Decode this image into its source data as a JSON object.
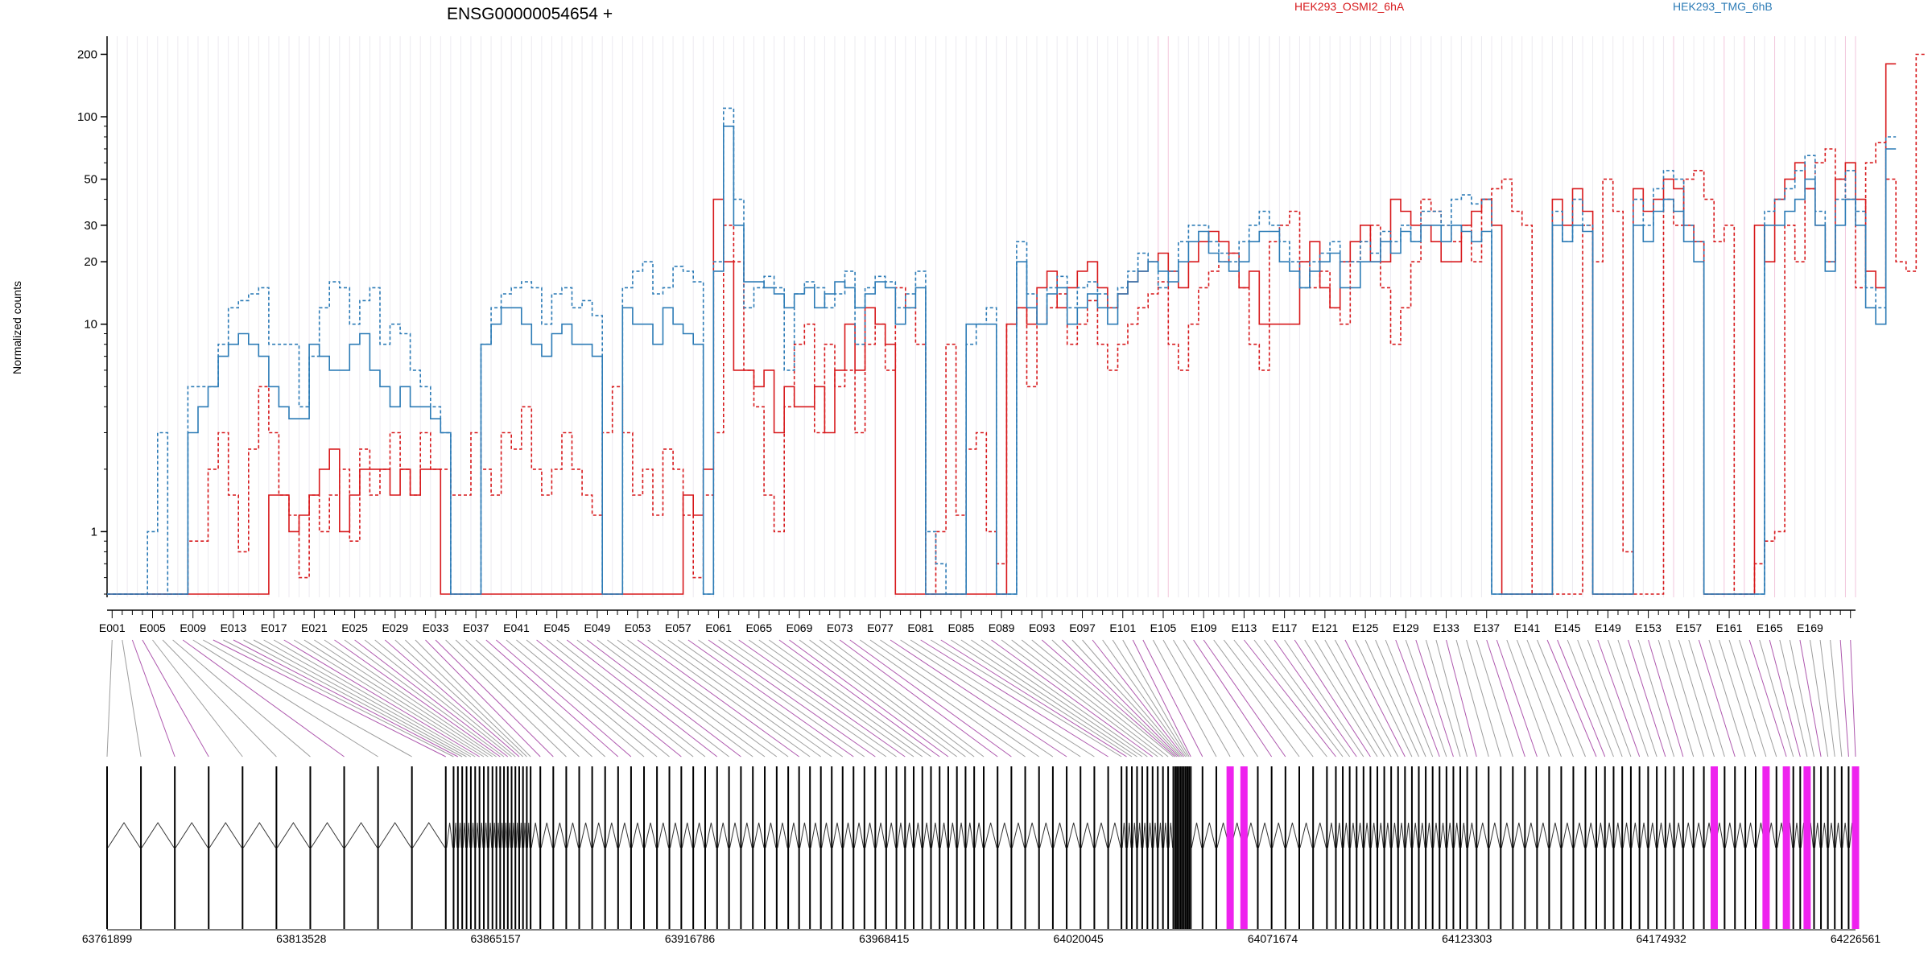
{
  "title": "ENSG00000054654 +",
  "legend": [
    {
      "name": "HEK293_OSMI2_6hA",
      "color": "#d7191c"
    },
    {
      "name": "HEK293_TMG_6hB",
      "color": "#2c7bb6"
    }
  ],
  "colors": {
    "osmi": "#d7191c",
    "tmg": "#2c7bb6",
    "exon_highlight": "#ee22ee",
    "connector_normal": "#8c8c8c",
    "connector_highlight": "#a03ca0"
  },
  "chart_data": {
    "type": "line",
    "title": "ENSG00000054654 +",
    "xlabel": "",
    "ylabel": "Normalized counts",
    "y_scale": "log",
    "ylim": [
      0.5,
      210
    ],
    "y_ticks": [
      1,
      10,
      20,
      30,
      50,
      100,
      200
    ],
    "y_tick_labels": [
      "1",
      "10",
      "20",
      "30",
      "50",
      "100",
      "200"
    ],
    "bins_count": 173,
    "bin_labels": [
      "E001",
      "E005",
      "E009",
      "E013",
      "E017",
      "E021",
      "E025",
      "E029",
      "E033",
      "E037",
      "E041",
      "E045",
      "E049",
      "E053",
      "E057",
      "E061",
      "E065",
      "E069",
      "E073",
      "E077",
      "E081",
      "E085",
      "E089",
      "E093",
      "E097",
      "E101",
      "E105",
      "E109",
      "E113",
      "E117",
      "E121",
      "E125",
      "E129",
      "E133",
      "E137",
      "E141",
      "E145",
      "E149",
      "E153",
      "E157",
      "E161",
      "E165",
      "E169"
    ],
    "genomic_range": [
      63761899,
      64226561
    ],
    "genomic_ticks": [
      "63761899",
      "63813528",
      "63865157",
      "63916786",
      "63968415",
      "64020045",
      "64071674",
      "64123303",
      "64174932",
      "64226561"
    ],
    "highlighted_exons": [
      104,
      105,
      155,
      160,
      162,
      165,
      172,
      173
    ],
    "series": [
      {
        "name": "HEK293_OSMI2_6hA",
        "style": "dashed",
        "values": [
          0.5,
          0.5,
          0.5,
          0.5,
          0.5,
          0.5,
          0.5,
          0.5,
          0.9,
          0.9,
          2,
          3,
          1.5,
          0.8,
          2.5,
          5,
          3,
          1.5,
          1.2,
          0.6,
          1.5,
          1,
          1.5,
          2,
          0.9,
          2.5,
          1.5,
          2,
          3,
          2,
          1.5,
          3,
          2,
          2,
          1.5,
          1.5,
          3,
          2,
          1.5,
          3,
          2.5,
          4,
          2,
          1.5,
          2,
          3,
          2,
          1.5,
          1.2,
          3,
          5,
          3,
          1.5,
          2,
          1.2,
          2.5,
          2,
          1.2,
          0.6,
          1.5,
          3,
          30,
          20,
          6,
          4,
          1.5,
          1,
          4,
          8,
          10,
          3,
          8,
          5,
          6,
          3,
          8,
          10,
          6,
          15,
          12,
          8,
          0.5,
          1,
          8,
          1.2,
          2.5,
          3,
          1,
          0.7,
          10,
          12,
          5,
          10,
          12,
          14,
          8,
          10,
          13,
          8,
          6,
          8,
          10,
          12,
          14,
          16,
          8,
          6,
          10,
          15,
          18,
          20,
          22,
          15,
          8,
          6,
          25,
          30,
          35,
          20,
          15,
          18,
          12,
          10,
          20,
          25,
          30,
          15,
          8,
          12,
          20,
          40,
          35,
          30,
          25,
          30,
          20,
          40,
          45,
          50,
          35,
          30,
          0.5,
          0.5,
          0.5,
          0.5,
          0.5,
          30,
          20,
          50,
          35,
          0.8,
          0.5,
          0.5,
          0.5,
          40,
          30,
          50,
          55,
          40,
          25,
          30,
          0.5,
          0.5,
          0.7,
          0.9,
          1,
          30,
          20,
          45,
          60,
          70,
          50,
          40,
          15,
          60,
          75,
          50,
          20,
          18,
          200
        ]
      },
      {
        "name": "HEK293_OSMI2_6hA",
        "style": "solid",
        "values": [
          0.5,
          0.5,
          0.5,
          0.5,
          0.5,
          0.5,
          0.5,
          0.5,
          0.5,
          0.5,
          0.5,
          0.5,
          0.5,
          0.5,
          0.5,
          0.5,
          1.5,
          1.5,
          1,
          1.2,
          1.5,
          2,
          2.5,
          1,
          1.5,
          2,
          2,
          2,
          1.5,
          2,
          1.5,
          2,
          2,
          0.5,
          0.5,
          0.5,
          0.5,
          0.5,
          0.5,
          0.5,
          0.5,
          0.5,
          0.5,
          0.5,
          0.5,
          0.5,
          0.5,
          0.5,
          0.5,
          0.5,
          0.5,
          0.5,
          0.5,
          0.5,
          0.5,
          0.5,
          0.5,
          1.5,
          1.2,
          2,
          40,
          20,
          6,
          6,
          5,
          6,
          3,
          5,
          4,
          4,
          5,
          3,
          6,
          10,
          6,
          12,
          10,
          8,
          0.5,
          0.5,
          0.5,
          0.5,
          0.5,
          0.5,
          0.5,
          0.5,
          0.5,
          0.5,
          0.5,
          10,
          12,
          10,
          15,
          18,
          12,
          15,
          18,
          20,
          15,
          12,
          14,
          16,
          18,
          20,
          22,
          18,
          15,
          20,
          25,
          28,
          25,
          22,
          15,
          18,
          10,
          10,
          10,
          10,
          20,
          25,
          15,
          12,
          20,
          25,
          30,
          20,
          20,
          40,
          35,
          30,
          30,
          25,
          20,
          20,
          30,
          35,
          40,
          30,
          0.5,
          0.5,
          0.5,
          0.5,
          0.5,
          40,
          30,
          45,
          35,
          0.5,
          0.5,
          0.5,
          0.5,
          45,
          35,
          40,
          50,
          45,
          30,
          25,
          0.5,
          0.5,
          0.5,
          0.5,
          0.5,
          30,
          20,
          40,
          50,
          60,
          45,
          30,
          20,
          50,
          60,
          40,
          18,
          15,
          180
        ]
      },
      {
        "name": "HEK293_TMG_6hB",
        "style": "dashed",
        "values": [
          0.5,
          0.5,
          0.5,
          0.5,
          1,
          3,
          0.5,
          0.5,
          5,
          5,
          5,
          8,
          12,
          13,
          14,
          15,
          8,
          8,
          8,
          4,
          7,
          12,
          16,
          15,
          10,
          13,
          15,
          8,
          10,
          9,
          6,
          5,
          4,
          3,
          0.5,
          0.5,
          0.5,
          8,
          12,
          14,
          15,
          16,
          15,
          10,
          14,
          15,
          12,
          13,
          11,
          0.5,
          0.5,
          15,
          18,
          20,
          14,
          15,
          19,
          18,
          16,
          0.5,
          20,
          110,
          40,
          12,
          15,
          17,
          15,
          6,
          14,
          16,
          15,
          12,
          14,
          18,
          8,
          15,
          17,
          16,
          12,
          14,
          18,
          1,
          0.7,
          0.5,
          0.5,
          8,
          10,
          12,
          0.5,
          0.5,
          25,
          14,
          10,
          15,
          17,
          12,
          15,
          16,
          14,
          12,
          15,
          18,
          22,
          20,
          15,
          18,
          25,
          30,
          30,
          25,
          22,
          20,
          25,
          30,
          35,
          30,
          25,
          20,
          15,
          20,
          22,
          25,
          20,
          20,
          25,
          22,
          28,
          25,
          30,
          25,
          35,
          35,
          30,
          40,
          42,
          38,
          40,
          0.5,
          0.5,
          0.5,
          0.5,
          0.5,
          0.5,
          35,
          25,
          40,
          30,
          0.5,
          0.5,
          0.5,
          0.5,
          40,
          30,
          45,
          55,
          50,
          30,
          25,
          0.5,
          0.5,
          0.5,
          0.5,
          0.5,
          0.5,
          35,
          40,
          45,
          55,
          65,
          35,
          20,
          40,
          55,
          35,
          15,
          12,
          80
        ]
      },
      {
        "name": "HEK293_TMG_6hB",
        "style": "solid",
        "values": [
          0.5,
          0.5,
          0.5,
          0.5,
          0.5,
          0.5,
          0.5,
          0.5,
          3,
          4,
          5,
          7,
          8,
          9,
          8,
          7,
          5,
          4,
          3.5,
          3.5,
          8,
          7,
          6,
          6,
          8,
          9,
          6,
          5,
          4,
          5,
          4,
          4,
          3.5,
          3,
          0.5,
          0.5,
          0.5,
          8,
          10,
          12,
          12,
          10,
          8,
          7,
          9,
          10,
          8,
          8,
          7,
          0.5,
          0.5,
          12,
          10,
          10,
          8,
          12,
          10,
          9,
          8,
          0.5,
          18,
          90,
          30,
          16,
          16,
          15,
          14,
          12,
          14,
          15,
          12,
          14,
          16,
          15,
          12,
          14,
          16,
          15,
          10,
          12,
          15,
          0.5,
          0.5,
          0.5,
          0.5,
          10,
          10,
          10,
          0.5,
          0.5,
          20,
          12,
          10,
          14,
          15,
          10,
          12,
          14,
          12,
          10,
          14,
          16,
          18,
          20,
          18,
          16,
          20,
          25,
          28,
          22,
          20,
          18,
          20,
          25,
          28,
          28,
          20,
          18,
          15,
          18,
          20,
          22,
          15,
          15,
          20,
          20,
          25,
          22,
          28,
          25,
          30,
          30,
          25,
          30,
          28,
          25,
          28,
          0.5,
          0.5,
          0.5,
          0.5,
          0.5,
          0.5,
          30,
          25,
          30,
          28,
          0.5,
          0.5,
          0.5,
          0.5,
          30,
          25,
          35,
          40,
          35,
          25,
          20,
          0.5,
          0.5,
          0.5,
          0.5,
          0.5,
          0.5,
          30,
          30,
          35,
          40,
          50,
          30,
          18,
          30,
          40,
          30,
          12,
          10,
          70
        ]
      }
    ]
  }
}
